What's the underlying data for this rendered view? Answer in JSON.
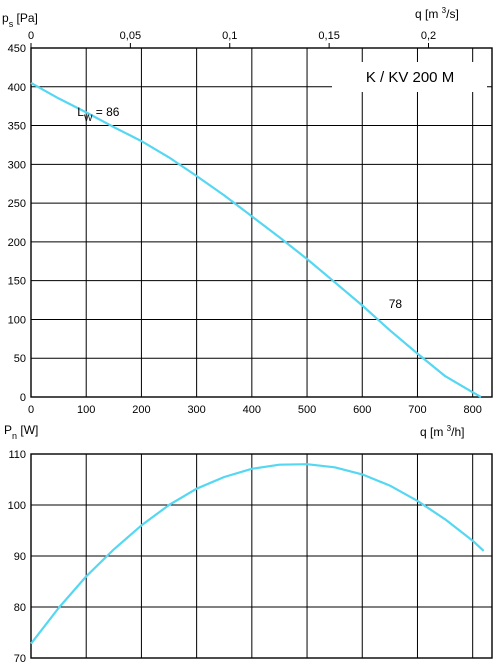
{
  "chart_data": [
    {
      "type": "line",
      "title": "K / KV 200 M",
      "ylabel": {
        "symbol": "p",
        "subscript": "s",
        "unit": "[Pa]"
      },
      "xlabel_bottom": {
        "symbol": "q",
        "unit_pre": "[m",
        "unit_sup": "3",
        "unit_post": "/h]"
      },
      "xlabel_top": {
        "symbol": "q",
        "unit_pre": "[m",
        "unit_sup": "3",
        "unit_post": "/s]"
      },
      "xlim": [
        0,
        835
      ],
      "ylim": [
        0,
        450
      ],
      "xticks": [
        0,
        100,
        200,
        300,
        400,
        500,
        600,
        700,
        800
      ],
      "yticks": [
        0,
        50,
        100,
        150,
        200,
        250,
        300,
        350,
        400,
        450
      ],
      "top_xticks": [
        0,
        0.05,
        0.1,
        0.15,
        0.2
      ],
      "top_xtick_labels": [
        "0",
        "0,05",
        "0,1",
        "0,15",
        "0,2"
      ],
      "grid": true,
      "series": [
        {
          "x": [
            0,
            50,
            100,
            150,
            200,
            250,
            300,
            350,
            400,
            450,
            500,
            550,
            600,
            650,
            700,
            750,
            800,
            815
          ],
          "y": [
            405,
            385,
            367,
            348,
            330,
            309,
            285,
            260,
            233,
            206,
            178,
            148,
            118,
            86,
            56,
            27,
            6,
            0
          ]
        }
      ],
      "annotations": [
        {
          "label": "L",
          "subscript": "W",
          "text": "= 86",
          "x": 178,
          "y": 365
        },
        {
          "text": "78",
          "x": 648,
          "y": 120
        }
      ]
    },
    {
      "type": "line",
      "ylabel": {
        "symbol": "P",
        "subscript": "n",
        "unit": "[W]"
      },
      "xlabel": {
        "symbol": "q",
        "unit_pre": "[m",
        "unit_sup": "3",
        "unit_post": "/h]"
      },
      "xlim": [
        0,
        835
      ],
      "ylim": [
        70,
        110
      ],
      "yticks": [
        70,
        80,
        90,
        100,
        110
      ],
      "grid": true,
      "series": [
        {
          "x": [
            0,
            50,
            100,
            150,
            200,
            250,
            300,
            350,
            400,
            450,
            500,
            550,
            600,
            650,
            700,
            750,
            800,
            820
          ],
          "y": [
            72.8,
            79.8,
            86.0,
            91.3,
            96.0,
            100.0,
            103.2,
            105.5,
            107.1,
            107.9,
            108.0,
            107.4,
            106.0,
            103.8,
            100.8,
            97.2,
            93.0,
            91.0
          ]
        }
      ]
    }
  ]
}
